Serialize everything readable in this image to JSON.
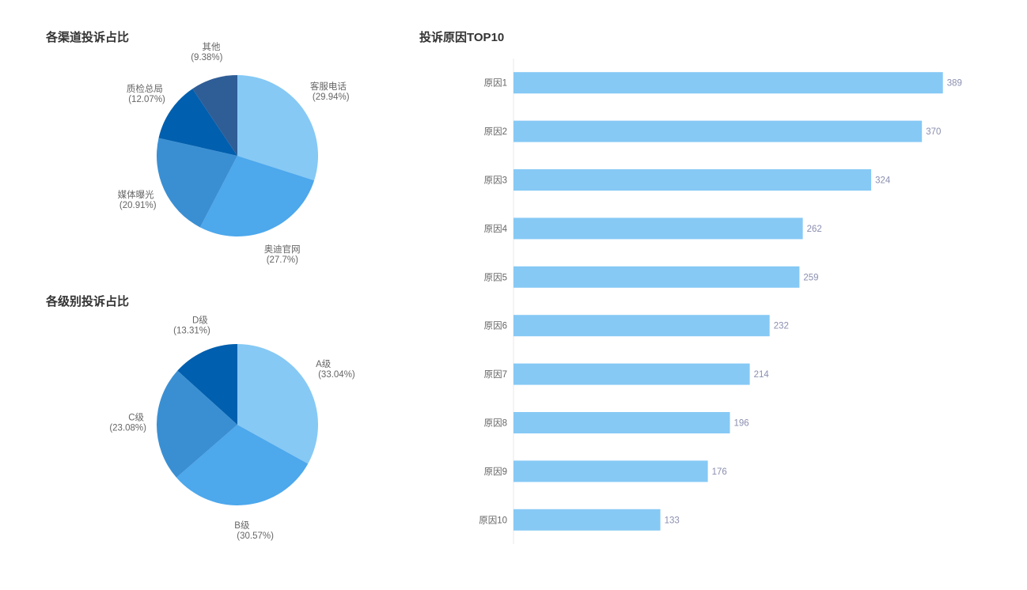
{
  "charts": {
    "channel": {
      "title": "各渠道投诉占比"
    },
    "level": {
      "title": "各级别投诉占比"
    },
    "reasons": {
      "title": "投诉原因TOP10"
    }
  },
  "chart_data": [
    {
      "type": "pie",
      "title": "各渠道投诉占比",
      "start_angle_deg": 90,
      "direction": "clockwise",
      "slices": [
        {
          "name": "客服电话",
          "value": 29.94,
          "label": "(29.94%)",
          "color": "#86c9f5"
        },
        {
          "name": "奥迪官网",
          "value": 27.7,
          "label": "(27.7%)",
          "color": "#4da8ec"
        },
        {
          "name": "媒体曝光",
          "value": 20.91,
          "label": "(20.91%)",
          "color": "#3a8fd3"
        },
        {
          "name": "质检总局",
          "value": 12.07,
          "label": "(12.07%)",
          "color": "#005fae"
        },
        {
          "name": "其他",
          "value": 9.38,
          "label": "(9.38%)",
          "color": "#2f5d96"
        }
      ]
    },
    {
      "type": "pie",
      "title": "各级别投诉占比",
      "start_angle_deg": 90,
      "direction": "clockwise",
      "slices": [
        {
          "name": "A级",
          "value": 33.04,
          "label": "(33.04%)",
          "color": "#86c9f5"
        },
        {
          "name": "B级",
          "value": 30.57,
          "label": "(30.57%)",
          "color": "#4da8ec"
        },
        {
          "name": "C级",
          "value": 23.08,
          "label": "(23.08%)",
          "color": "#3a8fd3"
        },
        {
          "name": "D级",
          "value": 13.31,
          "label": "(13.31%)",
          "color": "#005fae"
        }
      ]
    },
    {
      "type": "bar",
      "orientation": "horizontal",
      "title": "投诉原因TOP10",
      "categories": [
        "原因1",
        "原因2",
        "原因3",
        "原因4",
        "原因5",
        "原因6",
        "原因7",
        "原因8",
        "原因9",
        "原因10"
      ],
      "values": [
        389,
        370,
        324,
        262,
        259,
        232,
        214,
        196,
        176,
        133
      ],
      "xlim": [
        0,
        420
      ],
      "bar_color": "#86c9f5",
      "value_label_color": "#8a8fb0",
      "grid": false
    }
  ]
}
